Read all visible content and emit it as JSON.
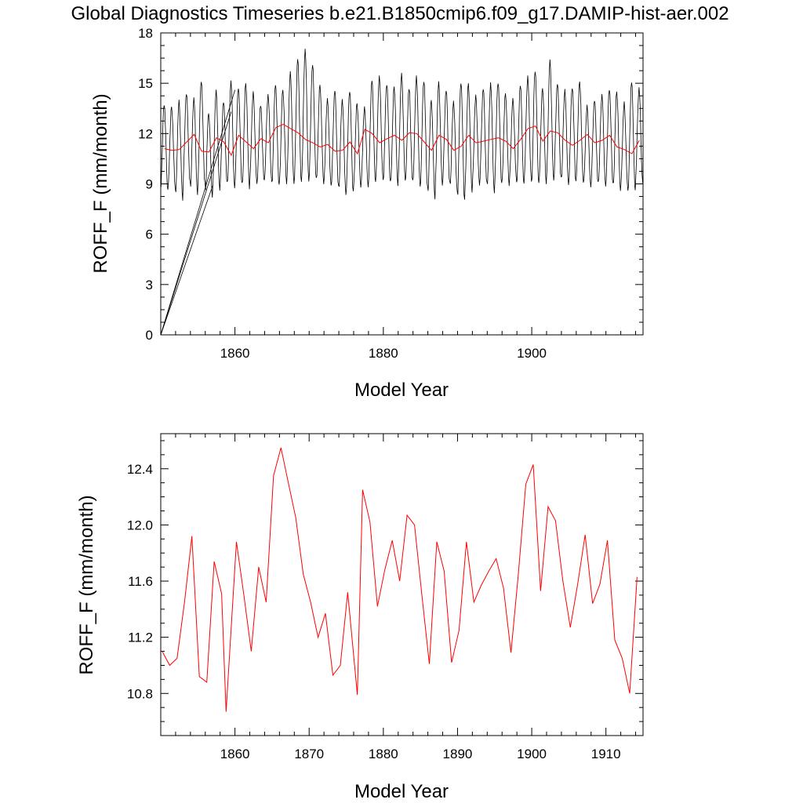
{
  "title": "Global Diagnostics Timeseries b.e21.B1850cmip6.f09_g17.DAMIP-hist-aer.002",
  "chart_data": [
    {
      "type": "line",
      "xlabel": "Model Year",
      "ylabel": "ROFF_F (mm/month)",
      "xlim": [
        1850,
        1915
      ],
      "ylim": [
        0,
        18
      ],
      "x_ticks": [
        1860,
        1880,
        1900
      ],
      "y_ticks": [
        0,
        3,
        6,
        9,
        12,
        15,
        18
      ],
      "grid": false,
      "colors": {
        "monthly": "#000000",
        "annual": "#ff0000"
      },
      "monthly_peaks": [
        13.8,
        13.6,
        13.9,
        14.4,
        14.1,
        15.2,
        13.2,
        14.5,
        13.9,
        15.1,
        14.8,
        15.0,
        14.4,
        13.7,
        14.3,
        15.0,
        14.6,
        15.6,
        16.5,
        17.0,
        16.2,
        14.9,
        14.0,
        14.6,
        14.0,
        14.6,
        13.8,
        13.5,
        15.2,
        15.4,
        15.0,
        14.8,
        15.5,
        14.7,
        15.4,
        15.2,
        14.0,
        15.0,
        14.6,
        13.9,
        15.1,
        15.0,
        14.2,
        14.7,
        15.0,
        15.1,
        14.4,
        14.0,
        14.9,
        15.4,
        15.8,
        14.7,
        16.3,
        15.0,
        14.6,
        14.8,
        15.1,
        13.6,
        14.0,
        14.3,
        14.7,
        14.5,
        13.8,
        15.1,
        14.7
      ],
      "monthly_troughs": [
        8.6,
        8.8,
        8.0,
        9.0,
        8.4,
        9.0,
        8.3,
        8.6,
        9.0,
        8.8,
        9.0,
        8.8,
        9.0,
        9.1,
        9.2,
        8.9,
        9.1,
        9.0,
        9.0,
        9.2,
        9.3,
        9.1,
        8.9,
        8.8,
        8.4,
        8.5,
        8.9,
        8.8,
        9.0,
        9.3,
        9.1,
        9.0,
        9.2,
        9.1,
        8.9,
        8.8,
        8.2,
        8.9,
        9.0,
        8.6,
        8.0,
        8.6,
        8.9,
        9.0,
        8.5,
        9.0,
        9.0,
        9.1,
        8.9,
        9.2,
        9.0,
        9.1,
        9.2,
        9.3,
        9.0,
        9.1,
        9.2,
        8.8,
        9.0,
        8.9,
        9.0,
        8.7,
        8.6,
        8.5,
        9.1
      ],
      "spurious_lines": [
        [
          [
            1850,
            0
          ],
          [
            1860,
            14.6
          ]
        ],
        [
          [
            1850,
            0
          ],
          [
            1859.5,
            13.3
          ]
        ],
        [
          [
            1850,
            0
          ],
          [
            1857,
            8.9
          ]
        ]
      ],
      "series": [
        {
          "values": [
            11.1,
            11.0,
            11.05,
            11.5,
            11.95,
            10.95,
            10.9,
            11.75,
            11.5,
            10.7,
            11.9,
            11.5,
            11.1,
            11.7,
            11.45,
            12.35,
            12.55,
            12.3,
            12.05,
            11.65,
            11.45,
            11.2,
            11.35,
            10.95,
            11.0,
            11.5,
            10.8,
            12.25,
            12.0,
            11.45,
            11.7,
            11.9,
            11.6,
            12.05,
            12.0,
            11.5,
            11.0,
            11.9,
            11.65,
            11.0,
            11.25,
            11.9,
            11.45,
            11.55,
            11.65,
            11.75,
            11.55,
            11.1,
            11.65,
            12.3,
            12.45,
            11.55,
            12.15,
            12.05,
            11.6,
            11.3,
            11.6,
            11.95,
            11.45,
            11.6,
            11.9,
            11.2,
            11.05,
            10.8,
            11.6
          ]
        }
      ]
    },
    {
      "type": "line",
      "xlabel": "Model Year",
      "ylabel": "ROFF_F (mm/month)",
      "xlim": [
        1850,
        1915
      ],
      "ylim": [
        10.5,
        12.65
      ],
      "x_ticks": [
        1860,
        1870,
        1880,
        1890,
        1900,
        1910
      ],
      "y_ticks": [
        10.8,
        11.2,
        11.6,
        12.0,
        12.4
      ],
      "y_tick_labels": [
        "10.8",
        "11.2",
        "11.6",
        "12.0",
        "12.4"
      ],
      "grid": false,
      "colors": {
        "annual": "#ff0000"
      },
      "x": [
        1850.2,
        1851.2,
        1852.2,
        1853.2,
        1854.2,
        1855.2,
        1856.2,
        1857.2,
        1858.2,
        1858.8,
        1860.2,
        1861.2,
        1862.2,
        1863.2,
        1864.2,
        1865.2,
        1866.2,
        1867.2,
        1868.2,
        1869.2,
        1870.2,
        1871.2,
        1872.2,
        1873.2,
        1874.2,
        1875.2,
        1876.5,
        1877.2,
        1878.2,
        1879.2,
        1880.2,
        1881.2,
        1882.2,
        1883.2,
        1884.2,
        1885.2,
        1886.2,
        1887.2,
        1888.2,
        1889.2,
        1890.2,
        1891.2,
        1892.2,
        1893.2,
        1894.2,
        1895.2,
        1896.2,
        1897.2,
        1898.2,
        1899.2,
        1900.2,
        1901.2,
        1902.2,
        1903.2,
        1904.2,
        1905.2,
        1906.2,
        1907.2,
        1908.2,
        1909.2,
        1910.2,
        1911.2,
        1912.2,
        1913.2,
        1914.2
      ],
      "series": [
        {
          "values": [
            11.1,
            11.0,
            11.05,
            11.45,
            11.92,
            10.92,
            10.88,
            11.74,
            11.51,
            10.67,
            11.88,
            11.5,
            11.1,
            11.7,
            11.45,
            12.35,
            12.55,
            12.3,
            12.05,
            11.65,
            11.45,
            11.2,
            11.37,
            10.93,
            11.0,
            11.52,
            10.79,
            12.25,
            12.02,
            11.42,
            11.68,
            11.89,
            11.6,
            12.07,
            12.0,
            11.5,
            11.01,
            11.88,
            11.67,
            11.02,
            11.25,
            11.88,
            11.45,
            11.57,
            11.67,
            11.76,
            11.55,
            11.09,
            11.65,
            12.29,
            12.43,
            11.53,
            12.13,
            12.03,
            11.6,
            11.27,
            11.58,
            11.93,
            11.44,
            11.58,
            11.89,
            11.18,
            11.05,
            10.8,
            11.63
          ]
        }
      ]
    }
  ]
}
